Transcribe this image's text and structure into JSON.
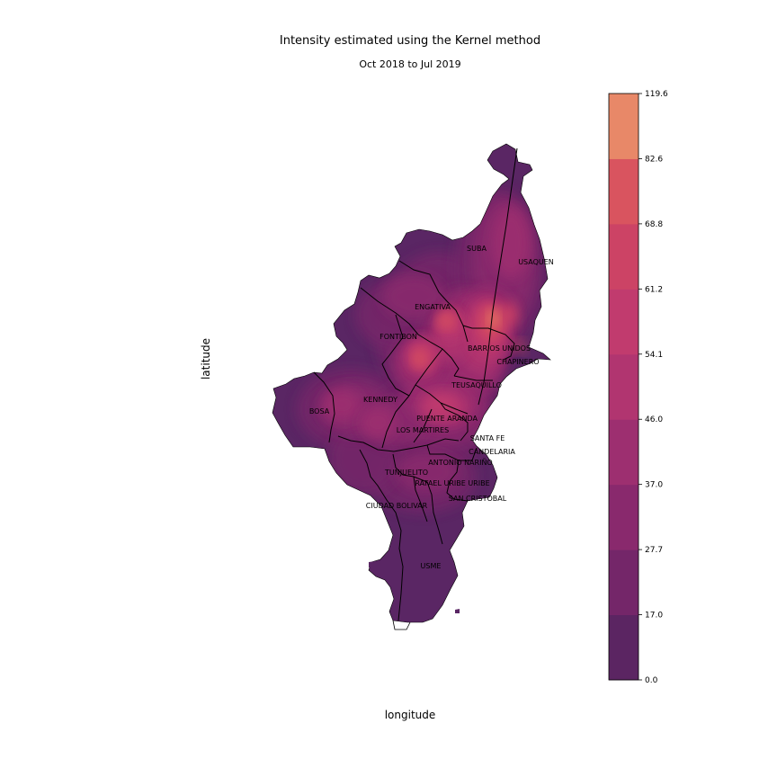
{
  "figure": {
    "title": "Intensity estimated using the Kernel method",
    "subtitle": "Oct 2018 to Jul 2019",
    "xlabel": "longitude",
    "ylabel": "latitude"
  },
  "colors": {
    "base_fill": "#5a2664",
    "border": "#000000",
    "levels": [
      "#5b2562",
      "#742669",
      "#89296d",
      "#9d2f70",
      "#b13570",
      "#c13b6e",
      "#cc4365",
      "#d9545f",
      "#e88868"
    ]
  },
  "colorbar": {
    "tick_labels": [
      "0.0",
      "17.0",
      "27.7",
      "37.0",
      "46.0",
      "54.1",
      "61.2",
      "68.8",
      "82.6",
      "119.6"
    ]
  },
  "chart_data": {
    "type": "heatmap",
    "title": "Intensity estimated using the Kernel method",
    "subtitle": "Oct 2018 to Jul 2019",
    "xlabel": "longitude",
    "ylabel": "latitude",
    "levels": [
      0.0,
      17.0,
      27.7,
      37.0,
      46.0,
      54.1,
      61.2,
      68.8,
      82.6,
      119.6
    ],
    "colorbar_range": [
      0.0,
      119.6
    ],
    "hotspots": [
      {
        "near": "BARRIOS UNIDOS",
        "level": 82.6
      },
      {
        "near": "CHAPINERO",
        "level": 82.6
      },
      {
        "near": "ENGATIVA",
        "level": 68.8
      },
      {
        "near": "PUENTE ARANDA",
        "level": 61.2
      },
      {
        "near": "KENNEDY",
        "level": 54.1
      },
      {
        "near": "USAQUEN",
        "level": 54.1
      }
    ]
  },
  "districts": [
    "SUBA",
    "USAQUEN",
    "ENGATIVA",
    "FONTIBON",
    "BARRIOS UNIDOS",
    "CHAPINERO",
    "TEUSAQUILLO",
    "KENNEDY",
    "BOSA",
    "PUENTE ARANDA",
    "LOS MARTIRES",
    "SANTA FE",
    "CANDELARIA",
    "ANTONIO NARIÑO",
    "TUNJUELITO",
    "RAFAEL URIBE URIBE",
    "SAN CRISTOBAL",
    "CIUDAD BOLIVAR",
    "USME"
  ]
}
